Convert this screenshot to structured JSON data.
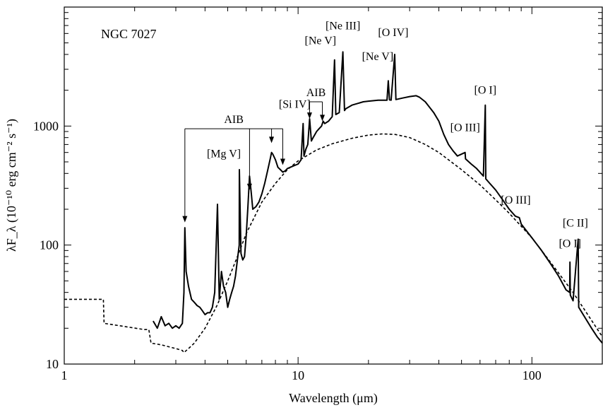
{
  "chart_data": {
    "type": "line",
    "title": "NGC 7027",
    "xlabel": "Wavelength (μm)",
    "ylabel": "λF_λ (10⁻¹⁰ erg cm⁻² s⁻¹)",
    "xscale": "log",
    "yscale": "log",
    "xlim": [
      1,
      200
    ],
    "ylim": [
      10,
      10000
    ],
    "grid": false,
    "x_tick_labels": [
      {
        "value": 1,
        "label": "1"
      },
      {
        "value": 10,
        "label": "10"
      },
      {
        "value": 100,
        "label": "100"
      }
    ],
    "y_tick_labels": [
      {
        "value": 10,
        "label": "10"
      },
      {
        "value": 100,
        "label": "100"
      },
      {
        "value": 1000,
        "label": "1000"
      }
    ],
    "series": [
      {
        "style": "solid",
        "points": [
          [
            2.4,
            23
          ],
          [
            2.5,
            20
          ],
          [
            2.6,
            25
          ],
          [
            2.7,
            21
          ],
          [
            2.8,
            22
          ],
          [
            2.9,
            20
          ],
          [
            3.0,
            21
          ],
          [
            3.1,
            20
          ],
          [
            3.2,
            22
          ],
          [
            3.25,
            40
          ],
          [
            3.28,
            140
          ],
          [
            3.32,
            60
          ],
          [
            3.4,
            45
          ],
          [
            3.5,
            35
          ],
          [
            3.6,
            33
          ],
          [
            3.7,
            31
          ],
          [
            3.8,
            30
          ],
          [
            3.9,
            28
          ],
          [
            4.0,
            26
          ],
          [
            4.1,
            27
          ],
          [
            4.2,
            27
          ],
          [
            4.3,
            30
          ],
          [
            4.4,
            40
          ],
          [
            4.52,
            220
          ],
          [
            4.6,
            35
          ],
          [
            4.7,
            60
          ],
          [
            4.8,
            45
          ],
          [
            4.9,
            40
          ],
          [
            5.0,
            30
          ],
          [
            5.1,
            35
          ],
          [
            5.2,
            40
          ],
          [
            5.3,
            45
          ],
          [
            5.4,
            55
          ],
          [
            5.5,
            75
          ],
          [
            5.6,
            100
          ],
          [
            5.61,
            430
          ],
          [
            5.7,
            85
          ],
          [
            5.8,
            75
          ],
          [
            5.9,
            80
          ],
          [
            6.0,
            120
          ],
          [
            6.1,
            210
          ],
          [
            6.2,
            380
          ],
          [
            6.3,
            280
          ],
          [
            6.4,
            200
          ],
          [
            6.6,
            210
          ],
          [
            6.8,
            230
          ],
          [
            7.0,
            270
          ],
          [
            7.2,
            330
          ],
          [
            7.4,
            420
          ],
          [
            7.6,
            530
          ],
          [
            7.7,
            600
          ],
          [
            7.8,
            580
          ],
          [
            8.0,
            520
          ],
          [
            8.2,
            450
          ],
          [
            8.4,
            430
          ],
          [
            8.6,
            410
          ],
          [
            8.8,
            420
          ],
          [
            9.0,
            440
          ],
          [
            9.5,
            460
          ],
          [
            10.0,
            480
          ],
          [
            10.3,
            520
          ],
          [
            10.51,
            1050
          ],
          [
            10.6,
            560
          ],
          [
            10.8,
            640
          ],
          [
            11.0,
            700
          ],
          [
            11.2,
            1150
          ],
          [
            11.4,
            750
          ],
          [
            11.6,
            800
          ],
          [
            11.8,
            850
          ],
          [
            12.0,
            900
          ],
          [
            12.3,
            950
          ],
          [
            12.6,
            1000
          ],
          [
            12.8,
            1100
          ],
          [
            13.0,
            1050
          ],
          [
            13.5,
            1100
          ],
          [
            14.0,
            1200
          ],
          [
            14.32,
            3600
          ],
          [
            14.5,
            1250
          ],
          [
            15.0,
            1300
          ],
          [
            15.55,
            4200
          ],
          [
            15.8,
            1350
          ],
          [
            16.0,
            1400
          ],
          [
            17.0,
            1500
          ],
          [
            18.0,
            1550
          ],
          [
            19.0,
            1600
          ],
          [
            20.0,
            1620
          ],
          [
            22.0,
            1650
          ],
          [
            24.0,
            1650
          ],
          [
            24.3,
            2400
          ],
          [
            24.6,
            1660
          ],
          [
            25.0,
            1650
          ],
          [
            25.89,
            4000
          ],
          [
            26.2,
            1670
          ],
          [
            28.0,
            1720
          ],
          [
            30.0,
            1770
          ],
          [
            32.0,
            1800
          ],
          [
            33.0,
            1750
          ],
          [
            35.0,
            1600
          ],
          [
            38.0,
            1300
          ],
          [
            40.0,
            1100
          ],
          [
            42.0,
            850
          ],
          [
            44.0,
            700
          ],
          [
            46.0,
            620
          ],
          [
            48.0,
            560
          ],
          [
            51.81,
            600
          ],
          [
            52.0,
            530
          ],
          [
            55.0,
            480
          ],
          [
            58.0,
            440
          ],
          [
            62.0,
            380
          ],
          [
            63.18,
            1500
          ],
          [
            63.5,
            360
          ],
          [
            66.0,
            330
          ],
          [
            70.0,
            290
          ],
          [
            75.0,
            240
          ],
          [
            80.0,
            200
          ],
          [
            85.0,
            175
          ],
          [
            88.36,
            170
          ],
          [
            90.0,
            150
          ],
          [
            100.0,
            115
          ],
          [
            110.0,
            90
          ],
          [
            120.0,
            70
          ],
          [
            130.0,
            55
          ],
          [
            140.0,
            42
          ],
          [
            145.0,
            40
          ],
          [
            145.5,
            72
          ],
          [
            146.0,
            38
          ],
          [
            150.0,
            34
          ],
          [
            157.7,
            112
          ],
          [
            158.5,
            30
          ],
          [
            170.0,
            24
          ],
          [
            180.0,
            20
          ],
          [
            190.0,
            17
          ],
          [
            200.0,
            15
          ]
        ]
      },
      {
        "style": "dashed",
        "points": [
          [
            1.0,
            35
          ],
          [
            1.47,
            35
          ],
          [
            1.48,
            22
          ],
          [
            2.2,
            19.5
          ],
          [
            2.3,
            19.5
          ],
          [
            2.35,
            15
          ],
          [
            2.6,
            14.5
          ],
          [
            3.0,
            13.5
          ],
          [
            3.2,
            13
          ],
          [
            3.25,
            12.5
          ],
          [
            3.4,
            13.5
          ],
          [
            3.6,
            15
          ],
          [
            4.0,
            20
          ],
          [
            4.5,
            31
          ],
          [
            5.0,
            50
          ],
          [
            5.5,
            80
          ],
          [
            6.0,
            125
          ],
          [
            7.0,
            230
          ],
          [
            8.0,
            330
          ],
          [
            9.0,
            430
          ],
          [
            10.0,
            510
          ],
          [
            12.0,
            630
          ],
          [
            14.0,
            710
          ],
          [
            17.0,
            790
          ],
          [
            20.0,
            840
          ],
          [
            23.0,
            860
          ],
          [
            26.0,
            850
          ],
          [
            30.0,
            800
          ],
          [
            35.0,
            700
          ],
          [
            40.0,
            600
          ],
          [
            50.0,
            430
          ],
          [
            60.0,
            320
          ],
          [
            70.0,
            240
          ],
          [
            80.0,
            185
          ],
          [
            100.0,
            115
          ],
          [
            120.0,
            72
          ],
          [
            150.0,
            40
          ],
          [
            200.0,
            17
          ]
        ]
      }
    ],
    "annotations": [
      {
        "text": "[Ne III]",
        "x": 15.55,
        "tip_y": 4300
      },
      {
        "text": "[O IV]",
        "x": 25.89,
        "tip_y": 4100
      },
      {
        "text": "[Ne V]",
        "x": 14.32,
        "tip_y": 3700
      },
      {
        "text": "[Ne V]",
        "x": 24.3,
        "tip_y": 2450
      },
      {
        "text": "[Si IV]",
        "x": 10.51,
        "tip_y": 1080
      },
      {
        "text": "[O I]",
        "x": 63.18,
        "tip_y": 1550
      },
      {
        "text": "[O III]",
        "x": 51.81,
        "tip_y": 620
      },
      {
        "text": "[Mg V]",
        "x": 5.61,
        "tip_y": 440
      },
      {
        "text": "[O III]",
        "x": 88.36,
        "tip_y": 175
      },
      {
        "text": "[C II]",
        "x": 157.7,
        "tip_y": 115
      },
      {
        "text": "[O I]",
        "x": 145.5,
        "tip_y": 75
      }
    ],
    "aib_groups": [
      {
        "label": "AIB",
        "bracket_y": 1600,
        "arrows": [
          {
            "x": 11.2,
            "tip_y": 1150
          },
          {
            "x": 12.7,
            "tip_y": 1100
          }
        ]
      },
      {
        "label": "AIB",
        "bracket_y": 950,
        "arrows": [
          {
            "x": 3.28,
            "tip_y": 155
          },
          {
            "x": 6.2,
            "tip_y": 290
          },
          {
            "x": 7.7,
            "tip_y": 720
          },
          {
            "x": 8.6,
            "tip_y": 470
          }
        ]
      }
    ]
  }
}
